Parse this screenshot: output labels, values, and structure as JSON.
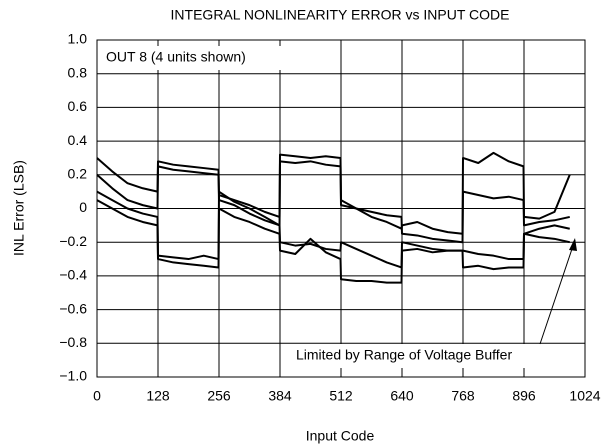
{
  "chart_data": {
    "type": "line",
    "title": "INTEGRAL NONLINEARITY ERROR vs INPUT CODE",
    "x_label": "Input Code",
    "y_label": "INL Error (LSB)",
    "annotations": [
      "OUT 8 (4 units shown)",
      "Limited by Range of Voltage Buffer"
    ],
    "x": [
      0,
      32,
      64,
      96,
      127,
      128,
      160,
      192,
      224,
      255,
      256,
      288,
      320,
      352,
      383,
      384,
      416,
      448,
      480,
      511,
      512,
      544,
      576,
      608,
      639,
      640,
      672,
      704,
      736,
      767,
      768,
      800,
      832,
      864,
      895,
      896,
      928,
      960,
      992
    ],
    "series": [
      {
        "color": "#000000",
        "values": [
          0.3,
          0.22,
          0.15,
          0.12,
          0.1,
          0.28,
          0.26,
          0.25,
          0.24,
          0.23,
          0.08,
          0.05,
          0.02,
          -0.02,
          -0.05,
          0.32,
          0.31,
          0.3,
          0.31,
          0.3,
          0.05,
          0.0,
          -0.05,
          -0.08,
          -0.12,
          -0.1,
          -0.08,
          -0.12,
          -0.14,
          -0.15,
          0.3,
          0.27,
          0.33,
          0.28,
          0.25,
          -0.05,
          -0.06,
          -0.02,
          0.2
        ]
      },
      {
        "color": "#000000",
        "values": [
          0.2,
          0.12,
          0.05,
          0.02,
          0.0,
          0.25,
          0.23,
          0.22,
          0.21,
          0.2,
          0.05,
          0.02,
          -0.03,
          -0.07,
          -0.1,
          0.28,
          0.27,
          0.28,
          0.26,
          0.25,
          0.02,
          0.0,
          -0.02,
          -0.04,
          -0.05,
          -0.15,
          -0.16,
          -0.18,
          -0.19,
          -0.2,
          0.1,
          0.08,
          0.06,
          0.07,
          0.05,
          -0.1,
          -0.08,
          -0.07,
          -0.05
        ]
      },
      {
        "color": "#000000",
        "values": [
          0.1,
          0.05,
          0.0,
          -0.03,
          -0.05,
          -0.28,
          -0.29,
          -0.3,
          -0.28,
          -0.3,
          0.1,
          0.04,
          0.0,
          -0.05,
          -0.1,
          -0.2,
          -0.22,
          -0.21,
          -0.24,
          -0.25,
          -0.2,
          -0.24,
          -0.28,
          -0.32,
          -0.35,
          -0.2,
          -0.22,
          -0.24,
          -0.25,
          -0.25,
          -0.25,
          -0.27,
          -0.28,
          -0.3,
          -0.3,
          -0.15,
          -0.12,
          -0.1,
          -0.12
        ]
      },
      {
        "color": "#000000",
        "values": [
          0.05,
          0.0,
          -0.05,
          -0.08,
          -0.1,
          -0.3,
          -0.32,
          -0.33,
          -0.34,
          -0.35,
          0.0,
          -0.05,
          -0.08,
          -0.12,
          -0.15,
          -0.25,
          -0.27,
          -0.18,
          -0.26,
          -0.3,
          -0.42,
          -0.43,
          -0.43,
          -0.44,
          -0.44,
          -0.25,
          -0.24,
          -0.26,
          -0.25,
          -0.25,
          -0.35,
          -0.34,
          -0.36,
          -0.35,
          -0.35,
          -0.15,
          -0.17,
          -0.18,
          -0.2
        ]
      }
    ],
    "xlim": [
      0,
      1024
    ],
    "xticks": [
      0,
      128,
      256,
      384,
      512,
      640,
      768,
      896,
      1024
    ],
    "ylim": [
      -1,
      1
    ],
    "yticks": [
      {
        "value": -1,
        "label": "−1.0"
      },
      {
        "value": -0.8,
        "label": "−0.8"
      },
      {
        "value": -0.6,
        "label": "−0.6"
      },
      {
        "value": -0.4,
        "label": "−0.4"
      },
      {
        "value": -0.2,
        "label": "−0.2"
      },
      0,
      0.2,
      0.4,
      0.6,
      0.8,
      {
        "value": 1,
        "label": "1.0"
      }
    ],
    "grid": true
  }
}
